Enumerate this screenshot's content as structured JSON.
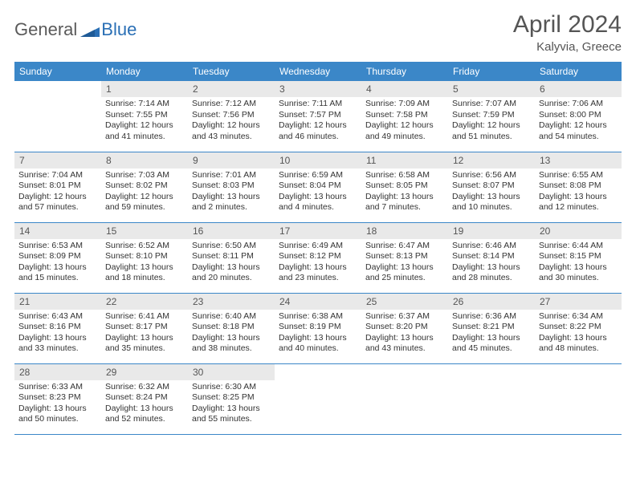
{
  "logo": {
    "text1": "General",
    "text2": "Blue"
  },
  "title": "April 2024",
  "location": "Kalyvia, Greece",
  "colors": {
    "header_bg": "#3b87c8",
    "header_text": "#ffffff",
    "daynum_bg": "#e9e9e9",
    "border": "#3b87c8",
    "logo_gray": "#5a5a5a",
    "logo_blue": "#2a6fb5"
  },
  "weekdays": [
    "Sunday",
    "Monday",
    "Tuesday",
    "Wednesday",
    "Thursday",
    "Friday",
    "Saturday"
  ],
  "weeks": [
    [
      {
        "n": "",
        "sr": "",
        "ss": "",
        "dl": ""
      },
      {
        "n": "1",
        "sr": "Sunrise: 7:14 AM",
        "ss": "Sunset: 7:55 PM",
        "dl": "Daylight: 12 hours and 41 minutes."
      },
      {
        "n": "2",
        "sr": "Sunrise: 7:12 AM",
        "ss": "Sunset: 7:56 PM",
        "dl": "Daylight: 12 hours and 43 minutes."
      },
      {
        "n": "3",
        "sr": "Sunrise: 7:11 AM",
        "ss": "Sunset: 7:57 PM",
        "dl": "Daylight: 12 hours and 46 minutes."
      },
      {
        "n": "4",
        "sr": "Sunrise: 7:09 AM",
        "ss": "Sunset: 7:58 PM",
        "dl": "Daylight: 12 hours and 49 minutes."
      },
      {
        "n": "5",
        "sr": "Sunrise: 7:07 AM",
        "ss": "Sunset: 7:59 PM",
        "dl": "Daylight: 12 hours and 51 minutes."
      },
      {
        "n": "6",
        "sr": "Sunrise: 7:06 AM",
        "ss": "Sunset: 8:00 PM",
        "dl": "Daylight: 12 hours and 54 minutes."
      }
    ],
    [
      {
        "n": "7",
        "sr": "Sunrise: 7:04 AM",
        "ss": "Sunset: 8:01 PM",
        "dl": "Daylight: 12 hours and 57 minutes."
      },
      {
        "n": "8",
        "sr": "Sunrise: 7:03 AM",
        "ss": "Sunset: 8:02 PM",
        "dl": "Daylight: 12 hours and 59 minutes."
      },
      {
        "n": "9",
        "sr": "Sunrise: 7:01 AM",
        "ss": "Sunset: 8:03 PM",
        "dl": "Daylight: 13 hours and 2 minutes."
      },
      {
        "n": "10",
        "sr": "Sunrise: 6:59 AM",
        "ss": "Sunset: 8:04 PM",
        "dl": "Daylight: 13 hours and 4 minutes."
      },
      {
        "n": "11",
        "sr": "Sunrise: 6:58 AM",
        "ss": "Sunset: 8:05 PM",
        "dl": "Daylight: 13 hours and 7 minutes."
      },
      {
        "n": "12",
        "sr": "Sunrise: 6:56 AM",
        "ss": "Sunset: 8:07 PM",
        "dl": "Daylight: 13 hours and 10 minutes."
      },
      {
        "n": "13",
        "sr": "Sunrise: 6:55 AM",
        "ss": "Sunset: 8:08 PM",
        "dl": "Daylight: 13 hours and 12 minutes."
      }
    ],
    [
      {
        "n": "14",
        "sr": "Sunrise: 6:53 AM",
        "ss": "Sunset: 8:09 PM",
        "dl": "Daylight: 13 hours and 15 minutes."
      },
      {
        "n": "15",
        "sr": "Sunrise: 6:52 AM",
        "ss": "Sunset: 8:10 PM",
        "dl": "Daylight: 13 hours and 18 minutes."
      },
      {
        "n": "16",
        "sr": "Sunrise: 6:50 AM",
        "ss": "Sunset: 8:11 PM",
        "dl": "Daylight: 13 hours and 20 minutes."
      },
      {
        "n": "17",
        "sr": "Sunrise: 6:49 AM",
        "ss": "Sunset: 8:12 PM",
        "dl": "Daylight: 13 hours and 23 minutes."
      },
      {
        "n": "18",
        "sr": "Sunrise: 6:47 AM",
        "ss": "Sunset: 8:13 PM",
        "dl": "Daylight: 13 hours and 25 minutes."
      },
      {
        "n": "19",
        "sr": "Sunrise: 6:46 AM",
        "ss": "Sunset: 8:14 PM",
        "dl": "Daylight: 13 hours and 28 minutes."
      },
      {
        "n": "20",
        "sr": "Sunrise: 6:44 AM",
        "ss": "Sunset: 8:15 PM",
        "dl": "Daylight: 13 hours and 30 minutes."
      }
    ],
    [
      {
        "n": "21",
        "sr": "Sunrise: 6:43 AM",
        "ss": "Sunset: 8:16 PM",
        "dl": "Daylight: 13 hours and 33 minutes."
      },
      {
        "n": "22",
        "sr": "Sunrise: 6:41 AM",
        "ss": "Sunset: 8:17 PM",
        "dl": "Daylight: 13 hours and 35 minutes."
      },
      {
        "n": "23",
        "sr": "Sunrise: 6:40 AM",
        "ss": "Sunset: 8:18 PM",
        "dl": "Daylight: 13 hours and 38 minutes."
      },
      {
        "n": "24",
        "sr": "Sunrise: 6:38 AM",
        "ss": "Sunset: 8:19 PM",
        "dl": "Daylight: 13 hours and 40 minutes."
      },
      {
        "n": "25",
        "sr": "Sunrise: 6:37 AM",
        "ss": "Sunset: 8:20 PM",
        "dl": "Daylight: 13 hours and 43 minutes."
      },
      {
        "n": "26",
        "sr": "Sunrise: 6:36 AM",
        "ss": "Sunset: 8:21 PM",
        "dl": "Daylight: 13 hours and 45 minutes."
      },
      {
        "n": "27",
        "sr": "Sunrise: 6:34 AM",
        "ss": "Sunset: 8:22 PM",
        "dl": "Daylight: 13 hours and 48 minutes."
      }
    ],
    [
      {
        "n": "28",
        "sr": "Sunrise: 6:33 AM",
        "ss": "Sunset: 8:23 PM",
        "dl": "Daylight: 13 hours and 50 minutes."
      },
      {
        "n": "29",
        "sr": "Sunrise: 6:32 AM",
        "ss": "Sunset: 8:24 PM",
        "dl": "Daylight: 13 hours and 52 minutes."
      },
      {
        "n": "30",
        "sr": "Sunrise: 6:30 AM",
        "ss": "Sunset: 8:25 PM",
        "dl": "Daylight: 13 hours and 55 minutes."
      },
      {
        "n": "",
        "sr": "",
        "ss": "",
        "dl": ""
      },
      {
        "n": "",
        "sr": "",
        "ss": "",
        "dl": ""
      },
      {
        "n": "",
        "sr": "",
        "ss": "",
        "dl": ""
      },
      {
        "n": "",
        "sr": "",
        "ss": "",
        "dl": ""
      }
    ]
  ]
}
